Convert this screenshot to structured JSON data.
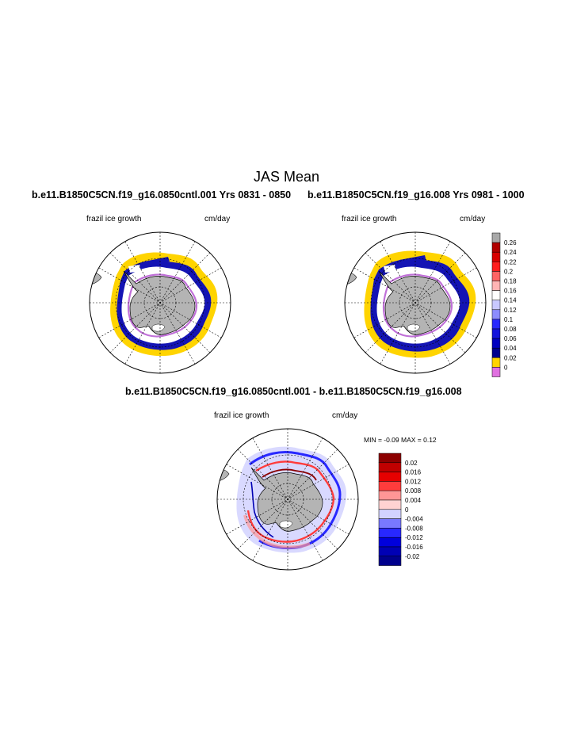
{
  "title": "JAS Mean",
  "panels": [
    {
      "title": "b.e11.B1850C5CN.f19_g16.0850cntl.001  Yrs 0831 - 0850",
      "left_label": "frazil ice growth",
      "right_label": "cm/day"
    },
    {
      "title": "b.e11.B1850C5CN.f19_g16.008  Yrs 0981 - 1000",
      "left_label": "frazil ice growth",
      "right_label": "cm/day"
    },
    {
      "title": "b.e11.B1850C5CN.f19_g16.0850cntl.001 - b.e11.B1850C5CN.f19_g16.008",
      "left_label": "frazil ice growth",
      "right_label": "cm/day",
      "stats": "MIN =  -0.09 MAX =   0.12"
    }
  ],
  "colors": {
    "land": "#b4b4b4",
    "ocean": "#ffffff",
    "positive_fill": "#ffd400",
    "coast_band": "#1414b4"
  },
  "chart_data": [
    {
      "type": "heatmap",
      "projection": "south polar stereographic",
      "field": "frazil ice growth",
      "units": "cm/day",
      "years": "0831 - 0850",
      "colorbar": {
        "levels": [
          "0.26",
          "0.24",
          "0.22",
          "0.2",
          "0.18",
          "0.16",
          "0.14",
          "0.12",
          "0.1",
          "0.08",
          "0.06",
          "0.04",
          "0.02",
          "0"
        ],
        "colors": [
          "#a8a8a8",
          "#b00000",
          "#d80000",
          "#ff1e1e",
          "#ff6464",
          "#ffb4b4",
          "#ffffff",
          "#c8c8ff",
          "#8c8cff",
          "#2828ff",
          "#1414dc",
          "#0000c0",
          "#00008c",
          "#ffd400",
          "#e070e0"
        ]
      }
    },
    {
      "type": "heatmap",
      "projection": "south polar stereographic",
      "field": "frazil ice growth",
      "units": "cm/day",
      "years": "0981 - 1000"
    },
    {
      "type": "heatmap",
      "projection": "south polar stereographic",
      "field": "frazil ice growth difference",
      "units": "cm/day",
      "min": -0.09,
      "max": 0.12,
      "colorbar": {
        "levels": [
          "0.02",
          "0.016",
          "0.012",
          "0.008",
          "0.004",
          "0",
          "-0.004",
          "-0.008",
          "-0.012",
          "-0.016",
          "-0.02"
        ],
        "colors": [
          "#8c0000",
          "#c00000",
          "#e60000",
          "#ff3c3c",
          "#ff9696",
          "#ffd2d2",
          "#d2d2ff",
          "#7878ff",
          "#2828ff",
          "#0000dc",
          "#0000b4",
          "#00008c"
        ]
      }
    }
  ]
}
